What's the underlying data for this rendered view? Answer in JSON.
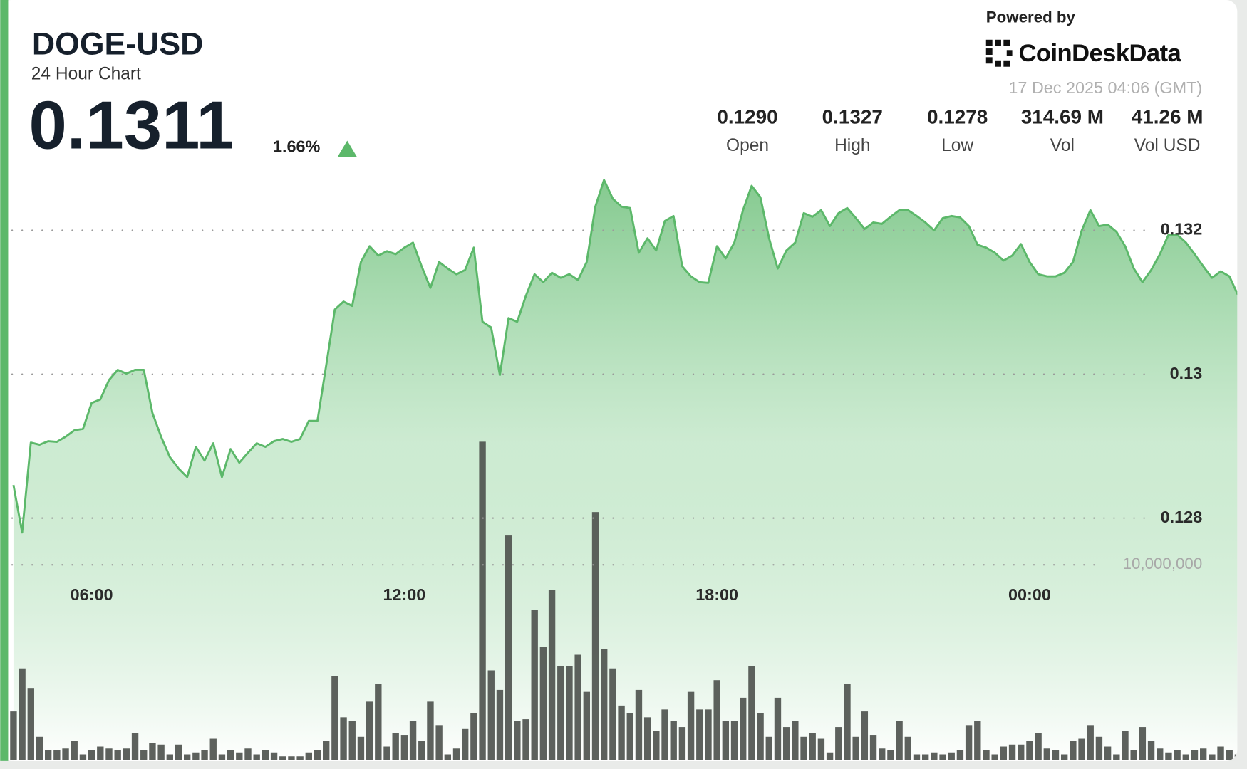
{
  "header": {
    "symbol": "DOGE-USD",
    "subtitle": "24 Hour Chart",
    "price": "0.1311",
    "change": "1.66%",
    "powered_by": "Powered by",
    "brand": "CoinDeskData",
    "timestamp": "17 Dec 2025 04:06 (GMT)",
    "stats": [
      {
        "value": "0.1290",
        "label": "Open"
      },
      {
        "value": "0.1327",
        "label": "High"
      },
      {
        "value": "0.1278",
        "label": "Low"
      },
      {
        "value": "314.69 M",
        "label": "Vol"
      },
      {
        "value": "41.26 M",
        "label": "Vol USD"
      }
    ]
  },
  "chart_data": {
    "type": "area",
    "categories": [
      null,
      null,
      null,
      null,
      null,
      null,
      null,
      null,
      null,
      "06:00",
      null,
      null,
      null,
      null,
      null,
      null,
      null,
      null,
      null,
      null,
      null,
      null,
      null,
      null,
      null,
      null,
      null,
      null,
      null,
      null,
      null,
      null,
      null,
      null,
      null,
      null,
      null,
      null,
      null,
      null,
      null,
      null,
      null,
      null,
      null,
      "12:00",
      null,
      null,
      null,
      null,
      null,
      null,
      null,
      null,
      null,
      null,
      null,
      null,
      null,
      null,
      null,
      null,
      null,
      null,
      null,
      null,
      null,
      null,
      null,
      null,
      null,
      null,
      null,
      null,
      null,
      null,
      null,
      null,
      null,
      null,
      null,
      "18:00",
      null,
      null,
      null,
      null,
      null,
      null,
      null,
      null,
      null,
      null,
      null,
      null,
      null,
      null,
      null,
      null,
      null,
      null,
      null,
      null,
      null,
      null,
      null,
      null,
      null,
      null,
      null,
      null,
      null,
      null,
      null,
      null,
      null,
      null,
      null,
      "00:00",
      null,
      null,
      null,
      null,
      null,
      null,
      null,
      null,
      null,
      null,
      null,
      null,
      null,
      null,
      null,
      null,
      null,
      null,
      null,
      null,
      null,
      null,
      null,
      null
    ],
    "series": [
      {
        "type": "area",
        "color": "#5cb86a",
        "values": [
          0.12846,
          0.1278,
          0.12905,
          0.12902,
          0.12907,
          0.12906,
          0.12913,
          0.12922,
          0.12924,
          0.1296,
          0.12965,
          0.12992,
          0.13006,
          0.13001,
          0.13006,
          0.13006,
          0.12946,
          0.12913,
          0.12885,
          0.12869,
          0.12857,
          0.12899,
          0.1288,
          0.12904,
          0.12857,
          0.12896,
          0.12877,
          0.12891,
          0.12904,
          0.12899,
          0.12907,
          0.1291,
          0.12906,
          0.1291,
          0.12935,
          0.12935,
          0.13012,
          0.1309,
          0.13101,
          0.13095,
          0.13156,
          0.13178,
          0.13165,
          0.13171,
          0.13167,
          0.13176,
          0.13183,
          0.1315,
          0.1312,
          0.13156,
          0.13147,
          0.13139,
          0.13145,
          0.13176,
          0.13073,
          0.13065,
          0.12999,
          0.13078,
          0.13073,
          0.13109,
          0.13139,
          0.13128,
          0.13141,
          0.13134,
          0.13139,
          0.13131,
          0.13156,
          0.13233,
          0.1327,
          0.13244,
          0.13233,
          0.13231,
          0.13169,
          0.13189,
          0.13172,
          0.13213,
          0.1322,
          0.1315,
          0.13136,
          0.13128,
          0.13127,
          0.13178,
          0.13161,
          0.13183,
          0.13228,
          0.13262,
          0.13246,
          0.13189,
          0.13147,
          0.13172,
          0.13183,
          0.13224,
          0.13219,
          0.13228,
          0.13206,
          0.13224,
          0.13231,
          0.13217,
          0.13202,
          0.13211,
          0.13209,
          0.13219,
          0.13228,
          0.13228,
          0.1322,
          0.13211,
          0.132,
          0.13217,
          0.1322,
          0.13218,
          0.13206,
          0.1318,
          0.13176,
          0.13169,
          0.13158,
          0.13165,
          0.13181,
          0.13156,
          0.13139,
          0.13136,
          0.13136,
          0.13141,
          0.13156,
          0.132,
          0.13228,
          0.13206,
          0.13208,
          0.13198,
          0.13178,
          0.13147,
          0.13128,
          0.13145,
          0.13167,
          0.13194,
          0.13194,
          0.13183,
          0.13167,
          0.1315,
          0.13134,
          0.13143,
          0.13136,
          0.1311
        ]
      },
      {
        "type": "bar",
        "axis": "y2",
        "color": "#4f544f",
        "values": [
          2500000,
          4700000,
          3700000,
          1200000,
          500000,
          500000,
          600000,
          1000000,
          300000,
          500000,
          700000,
          600000,
          500000,
          600000,
          1400000,
          500000,
          900000,
          800000,
          300000,
          800000,
          300000,
          400000,
          500000,
          1100000,
          300000,
          500000,
          400000,
          600000,
          300000,
          500000,
          400000,
          200000,
          200000,
          200000,
          400000,
          500000,
          1000000,
          4300000,
          2200000,
          2000000,
          1200000,
          3000000,
          3900000,
          700000,
          1400000,
          1300000,
          2000000,
          1000000,
          3000000,
          1800000,
          300000,
          600000,
          1600000,
          2400000,
          16300000,
          4600000,
          3600000,
          11500000,
          2000000,
          2100000,
          7700000,
          5800000,
          8700000,
          4800000,
          4800000,
          5400000,
          3500000,
          12700000,
          5700000,
          4700000,
          2800000,
          2400000,
          3600000,
          2200000,
          1500000,
          2600000,
          2000000,
          1700000,
          3500000,
          2600000,
          2600000,
          4100000,
          2000000,
          2000000,
          3200000,
          4800000,
          2400000,
          1200000,
          3200000,
          1700000,
          2000000,
          1200000,
          1400000,
          1100000,
          400000,
          1700000,
          3900000,
          1200000,
          2500000,
          1300000,
          600000,
          500000,
          2000000,
          1200000,
          300000,
          300000,
          400000,
          300000,
          400000,
          500000,
          1800000,
          2000000,
          500000,
          300000,
          700000,
          800000,
          800000,
          1000000,
          1400000,
          600000,
          500000,
          300000,
          1000000,
          1100000,
          1800000,
          1200000,
          700000,
          300000,
          1500000,
          500000,
          1700000,
          1000000,
          600000,
          400000,
          500000,
          300000,
          500000,
          600000,
          300000,
          700000,
          500000,
          300000
        ]
      }
    ],
    "ylim": [
      0.1246,
      0.1329
    ],
    "yticks": [
      0.128,
      0.13,
      0.132
    ],
    "y2lim": [
      0,
      20000000
    ],
    "y2ticks": [
      {
        "value": 10000000,
        "label": "10,000,000"
      }
    ],
    "grid": true
  }
}
